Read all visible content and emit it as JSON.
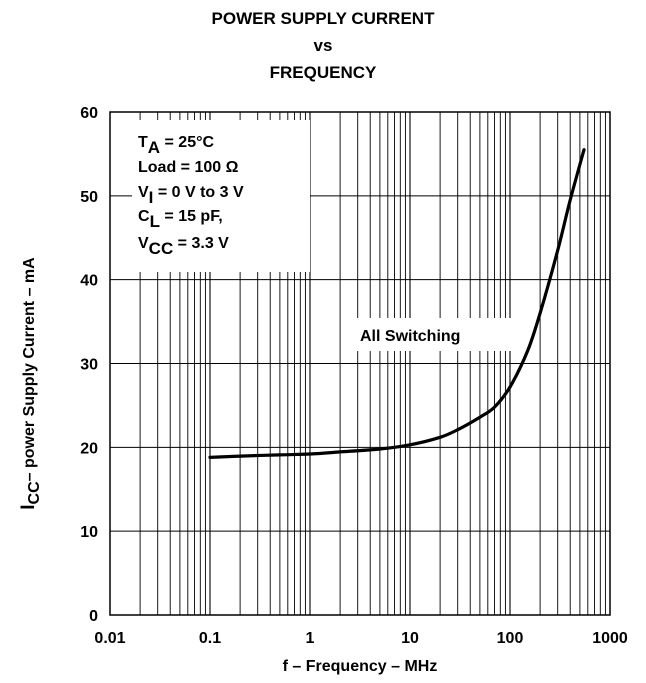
{
  "chart_data": {
    "type": "line",
    "title_lines": [
      "POWER SUPPLY CURRENT",
      "vs",
      "FREQUENCY"
    ],
    "xlabel": "f – Frequency – MHz",
    "ylabel": {
      "symbol": "I",
      "subscript": "CC",
      "rest": "– power Supply Current – mA"
    },
    "x_scale": "log",
    "xlim": [
      0.01,
      1000
    ],
    "ylim": [
      0,
      60
    ],
    "x_ticks": [
      {
        "value": 0.01,
        "label": "0.01"
      },
      {
        "value": 0.1,
        "label": "0.1"
      },
      {
        "value": 1,
        "label": "1"
      },
      {
        "value": 10,
        "label": "10"
      },
      {
        "value": 100,
        "label": "100"
      },
      {
        "value": 1000,
        "label": "1000"
      }
    ],
    "y_ticks": [
      {
        "value": 0,
        "label": "0"
      },
      {
        "value": 10,
        "label": "10"
      },
      {
        "value": 20,
        "label": "20"
      },
      {
        "value": 30,
        "label": "30"
      },
      {
        "value": 40,
        "label": "40"
      },
      {
        "value": 50,
        "label": "50"
      },
      {
        "value": 60,
        "label": "60"
      }
    ],
    "grid": true,
    "series": [
      {
        "name": "All  Switching",
        "x": [
          0.1,
          0.2,
          0.5,
          1,
          2,
          5,
          10,
          20,
          30,
          50,
          70,
          100,
          150,
          200,
          300,
          400,
          550
        ],
        "y": [
          18.8,
          18.95,
          19.1,
          19.2,
          19.45,
          19.8,
          20.3,
          21.2,
          22.1,
          23.6,
          24.8,
          27.2,
          31.5,
          36.0,
          43.5,
          49.5,
          55.5
        ]
      }
    ],
    "conditions": [
      {
        "main": "T",
        "sub": "A",
        "rest": " = 25°C"
      },
      {
        "main": "Load = 100 Ω",
        "sub": "",
        "rest": ""
      },
      {
        "main": "V",
        "sub": "I",
        "rest": " = 0 V to 3 V"
      },
      {
        "main": "C",
        "sub": "L",
        "rest": " = 15 pF,"
      },
      {
        "main": "V",
        "sub": "CC",
        "rest": " = 3.3 V"
      }
    ]
  }
}
